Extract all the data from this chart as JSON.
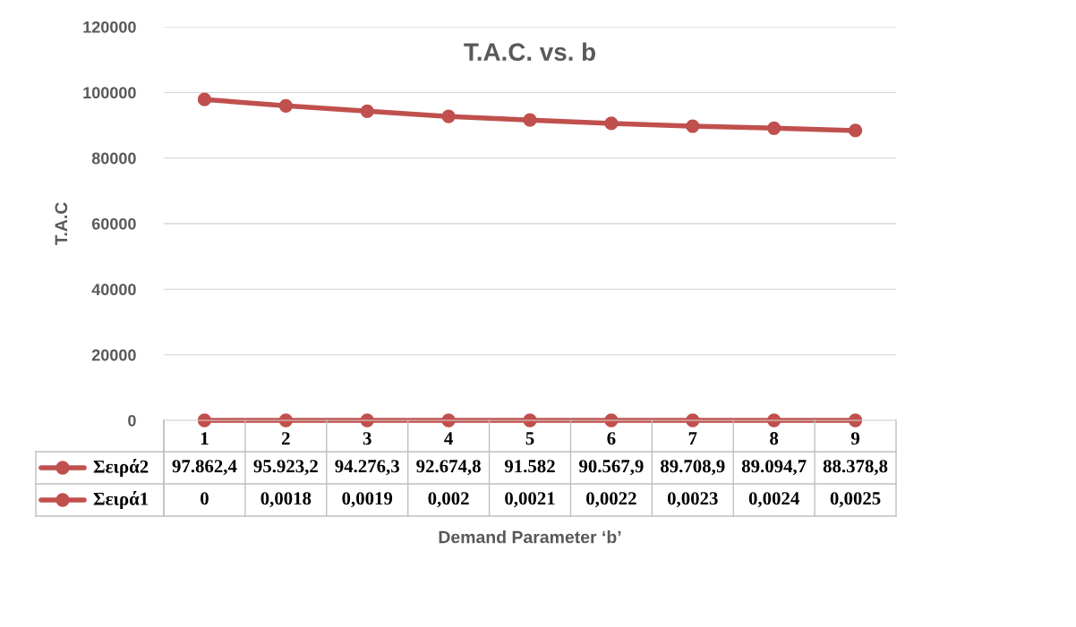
{
  "chart_data": {
    "type": "line",
    "title": "T.A.C. vs. b",
    "xlabel": "Demand Parameter ‘b’",
    "ylabel": "T.A.C",
    "categories": [
      "1",
      "2",
      "3",
      "4",
      "5",
      "6",
      "7",
      "8",
      "9"
    ],
    "series": [
      {
        "name": "Σειρά2",
        "color": "#c0504d",
        "values": [
          97862.4,
          95923.2,
          94276.3,
          92674.8,
          91582,
          90567.9,
          89708.9,
          89094.7,
          88378.8
        ],
        "value_labels": [
          "97.862,4",
          "95.923,2",
          "94.276,3",
          "92.674,8",
          "91.582",
          "90.567,9",
          "89.708,9",
          "89.094,7",
          "88.378,8"
        ]
      },
      {
        "name": "Σειρά1",
        "color": "#c0504d",
        "values": [
          0,
          0.0018,
          0.0019,
          0.002,
          0.0021,
          0.0022,
          0.0023,
          0.0024,
          0.0025
        ],
        "value_labels": [
          "0",
          "0,0018",
          "0,0019",
          "0,002",
          "0,0021",
          "0,0022",
          "0,0023",
          "0,0024",
          "0,0025"
        ]
      }
    ],
    "ylim": [
      0,
      120000
    ],
    "yticks": [
      0,
      20000,
      40000,
      60000,
      80000,
      100000,
      120000
    ],
    "grid": "y",
    "legend": "bottom",
    "marker": "circle",
    "line_style": "solid"
  }
}
